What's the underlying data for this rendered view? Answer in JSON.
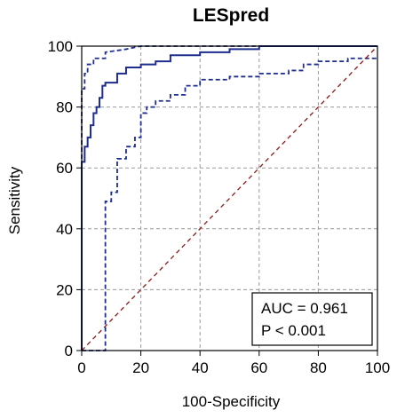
{
  "chart_data": {
    "type": "line",
    "title": "LESpred",
    "xlabel": "100-Specificity",
    "ylabel": "Sensitivity",
    "xlim": [
      0,
      100
    ],
    "ylim": [
      0,
      100
    ],
    "x_ticks": [
      0,
      20,
      40,
      60,
      80,
      100
    ],
    "y_ticks": [
      0,
      20,
      40,
      60,
      80,
      100
    ],
    "grid": true,
    "annotation": {
      "lines": [
        "AUC = 0.961",
        "P < 0.001"
      ],
      "placement": "bottom-right"
    },
    "series": [
      {
        "role": "roc",
        "color": "#1f2d8f",
        "style": "solid",
        "x": [
          0,
          0,
          1,
          1,
          2,
          2,
          3,
          3,
          4,
          4,
          5,
          5,
          6,
          6,
          7,
          7,
          8,
          8,
          12,
          12,
          15,
          15,
          20,
          20,
          25,
          25,
          30,
          30,
          40,
          40,
          50,
          50,
          60,
          60,
          70,
          80,
          90,
          100
        ],
        "y": [
          0,
          62,
          62,
          67,
          67,
          70,
          70,
          74,
          74,
          78,
          78,
          80,
          80,
          83,
          83,
          87,
          87,
          88,
          88,
          91,
          91,
          93,
          93,
          94,
          94,
          95,
          95,
          97,
          97,
          98,
          98,
          99,
          99,
          100,
          100,
          100,
          100,
          100
        ]
      },
      {
        "role": "ci-upper",
        "color": "#1f2d8f",
        "style": "dashed",
        "x": [
          0,
          0,
          1,
          1,
          2,
          2,
          4,
          4,
          8,
          8,
          15,
          20,
          30,
          50,
          60,
          100
        ],
        "y": [
          0,
          86,
          86,
          91,
          91,
          94,
          94,
          96,
          96,
          98,
          99,
          100,
          100,
          100,
          100,
          100
        ]
      },
      {
        "role": "ci-lower",
        "color": "#1f2d8f",
        "style": "dashed",
        "x": [
          0,
          8,
          8,
          10,
          10,
          12,
          12,
          15,
          15,
          18,
          18,
          20,
          20,
          22,
          22,
          25,
          25,
          30,
          30,
          35,
          35,
          40,
          40,
          50,
          50,
          60,
          60,
          70,
          70,
          75,
          75,
          80,
          80,
          90,
          90,
          100
        ],
        "y": [
          0,
          0,
          49,
          49,
          52,
          52,
          63,
          63,
          67,
          67,
          70,
          70,
          78,
          78,
          80,
          80,
          82,
          82,
          84,
          84,
          87,
          87,
          89,
          89,
          90,
          90,
          91,
          91,
          92,
          92,
          94,
          94,
          95,
          95,
          96,
          96
        ]
      },
      {
        "role": "reference",
        "color": "#8b1a1a",
        "style": "dashed",
        "x": [
          0,
          100
        ],
        "y": [
          0,
          100
        ]
      }
    ]
  }
}
